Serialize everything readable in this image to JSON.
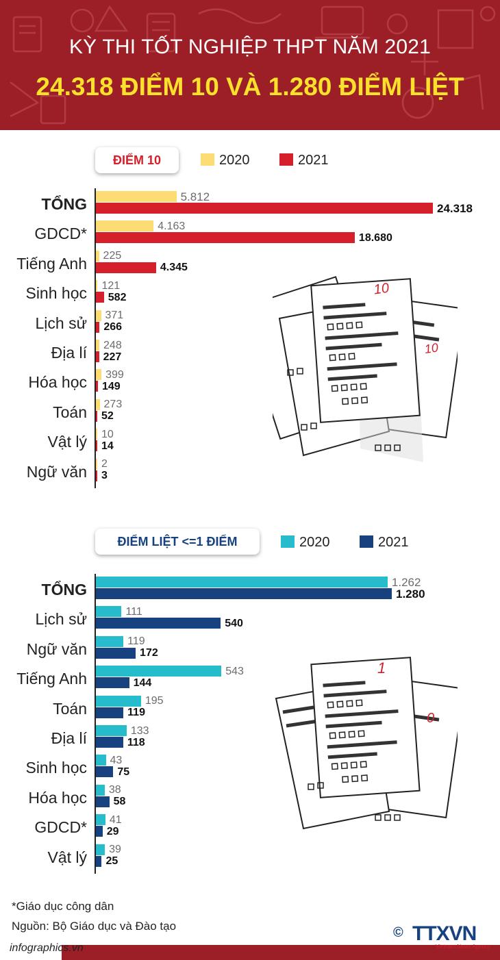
{
  "header": {
    "title_line1": "KỲ THI TỐT NGHIỆP THPT NĂM 2021",
    "title_line2": "24.318 ĐIỂM 10 VÀ 1.280 ĐIỂM LIỆT"
  },
  "colors": {
    "header_bg": "#9c1f27",
    "title_accent": "#fbe12b",
    "chart1_2020": "#fddc74",
    "chart1_2021": "#d5202b",
    "chart2_2020": "#27bccc",
    "chart2_2021": "#17417f"
  },
  "chart_data": [
    {
      "type": "bar",
      "orientation": "horizontal",
      "title": "ĐIỂM 10",
      "categories": [
        "TỔNG",
        "GDCD*",
        "Tiếng Anh",
        "Sinh học",
        "Lịch sử",
        "Địa lí",
        "Hóa học",
        "Toán",
        "Vật lý",
        "Ngữ văn"
      ],
      "series": [
        {
          "name": "2020",
          "values": [
            5812,
            4163,
            225,
            121,
            371,
            248,
            399,
            273,
            10,
            2
          ],
          "labels": [
            "5.812",
            "4.163",
            "225",
            "121",
            "371",
            "248",
            "399",
            "273",
            "10",
            "2"
          ]
        },
        {
          "name": "2021",
          "values": [
            24318,
            18680,
            4345,
            582,
            266,
            227,
            149,
            52,
            14,
            3
          ],
          "labels": [
            "24.318",
            "18.680",
            "4.345",
            "582",
            "266",
            "227",
            "149",
            "52",
            "14",
            "3"
          ]
        }
      ]
    },
    {
      "type": "bar",
      "orientation": "horizontal",
      "title": "ĐIỂM LIỆT <=1 ĐIỂM",
      "categories": [
        "TỔNG",
        "Lịch sử",
        "Ngữ văn",
        "Tiếng Anh",
        "Toán",
        "Địa lí",
        "Sinh học",
        "Hóa học",
        "GDCD*",
        "Vật lý"
      ],
      "series": [
        {
          "name": "2020",
          "values": [
            1262,
            111,
            119,
            543,
            195,
            133,
            43,
            38,
            41,
            39
          ],
          "labels": [
            "1.262",
            "111",
            "119",
            "543",
            "195",
            "133",
            "43",
            "38",
            "41",
            "39"
          ]
        },
        {
          "name": "2021",
          "values": [
            1280,
            540,
            172,
            144,
            119,
            118,
            75,
            58,
            29,
            25
          ],
          "labels": [
            "1.280",
            "540",
            "172",
            "144",
            "119",
            "118",
            "75",
            "58",
            "29",
            "25"
          ]
        }
      ]
    }
  ],
  "illustration1": {
    "grade_a": "10",
    "grade_b": "10"
  },
  "illustration2": {
    "grade_a": "1",
    "grade_b": "0"
  },
  "footer": {
    "note": "*Giáo dục công dân",
    "source": "Nguồn: Bộ Giáo dục và Đào tạo",
    "site": "infographics.vn",
    "copyright": "©",
    "agency_logo": "TTXVN",
    "agency_sub": "Vietnam News Agency"
  }
}
